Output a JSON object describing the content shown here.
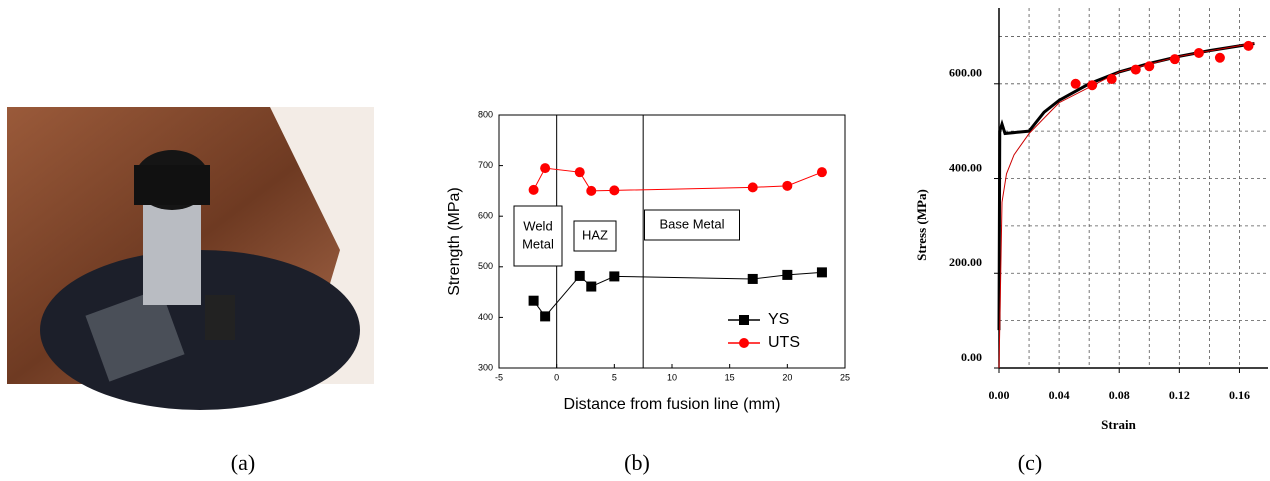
{
  "captions": [
    "(a)",
    "(b)",
    "(c)"
  ],
  "chart_data": [
    {
      "type": "line",
      "xlabel": "Distance from fusion line (mm)",
      "ylabel": "Strength (MPa)",
      "x": [
        -2,
        -1,
        2,
        3,
        5,
        17,
        20,
        23
      ],
      "series": [
        {
          "name": "YS",
          "color": "#000000",
          "marker": "square",
          "values": [
            433,
            402,
            482,
            461,
            481,
            476,
            484,
            489
          ]
        },
        {
          "name": "UTS",
          "color": "#ff0000",
          "marker": "circle",
          "values": [
            652,
            695,
            687,
            650,
            651,
            657,
            660,
            687
          ]
        }
      ],
      "xlim": [
        -5,
        25
      ],
      "xticks": [
        -5,
        0,
        5,
        10,
        15,
        20,
        25
      ],
      "ylim": [
        300,
        800
      ],
      "yticks": [
        300,
        400,
        500,
        600,
        700,
        800
      ],
      "vlines": [
        0,
        7.5
      ],
      "annotations": [
        [
          "Weld",
          "Metal"
        ],
        [
          "HAZ"
        ],
        [
          "Base Metal"
        ]
      ],
      "legend": "lower right"
    },
    {
      "type": "line",
      "xlabel": "Strain",
      "ylabel": "Stress (MPa)",
      "series": [
        {
          "color": "#000000",
          "marker": "none",
          "width": 3,
          "x": [
            0,
            0.0005,
            0.002,
            0.004,
            0.01,
            0.02,
            0.03,
            0.04,
            0.06,
            0.08,
            0.1,
            0.12,
            0.14,
            0.16,
            0.17
          ],
          "values": [
            80,
            500,
            515,
            495,
            497,
            500,
            540,
            565,
            600,
            625,
            643,
            658,
            670,
            680,
            685
          ]
        },
        {
          "color": "#cc0000",
          "marker": "none",
          "width": 1,
          "x": [
            0,
            0.002,
            0.005,
            0.01,
            0.02,
            0.04,
            0.08,
            0.12,
            0.17
          ],
          "values": [
            0,
            350,
            410,
            450,
            495,
            560,
            625,
            658,
            686
          ]
        },
        {
          "color": "#ff0000",
          "marker": "circle",
          "width": 0,
          "x": [
            0.051,
            0.062,
            0.075,
            0.091,
            0.1,
            0.117,
            0.133,
            0.147,
            0.166
          ],
          "values": [
            600,
            597,
            610,
            630,
            637,
            652,
            665,
            655,
            680
          ]
        }
      ],
      "xlim": [
        0,
        0.179
      ],
      "xticks": [
        {
          "value": 0,
          "label": "0.00"
        },
        {
          "value": 0.04,
          "label": "0.04"
        },
        {
          "value": 0.08,
          "label": "0.08"
        },
        {
          "value": 0.12,
          "label": "0.12"
        },
        {
          "value": 0.16,
          "label": "0.16"
        }
      ],
      "ylim": [
        0,
        760
      ],
      "yticks": [
        {
          "value": 0,
          "label": "0.00"
        },
        {
          "value": 200,
          "label": "200.00"
        },
        {
          "value": 400,
          "label": "400.00"
        },
        {
          "value": 600,
          "label": "600.00"
        }
      ],
      "xgrid": [
        0.02,
        0.04,
        0.06,
        0.08,
        0.1,
        0.12,
        0.14,
        0.16
      ],
      "ygrid": [
        100,
        200,
        300,
        400,
        500,
        600,
        700
      ],
      "grid": true
    }
  ]
}
